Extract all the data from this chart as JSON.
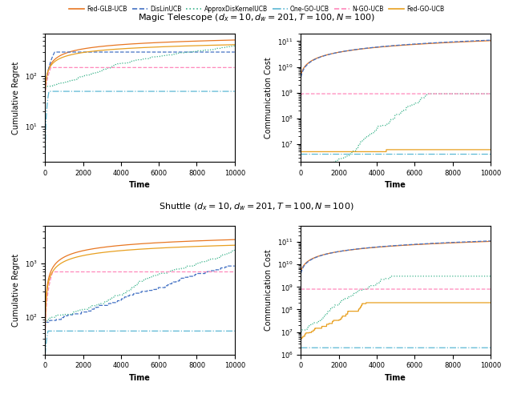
{
  "title_top": "Magic Telescope ($d_x = 10, d_w = 201, T = 100, N = 100$)",
  "title_bot": "Shuttle ($d_x = 10, d_w = 201, T = 100, N = 100$)",
  "legend_labels": [
    "Fed-GLB-UCB",
    "DisLinUCB",
    "ApproxDisKernelUCB",
    "One-GO-UCB",
    "N-GO-UCB",
    "Fed-GO-UCB"
  ],
  "colors": [
    "#E87722",
    "#4472C4",
    "#3CB48C",
    "#5BB8D4",
    "#FF88BB",
    "#E8A020"
  ],
  "linestyles": [
    "-",
    "--",
    ":",
    "-.",
    "--",
    "-"
  ],
  "xmax": 10000
}
